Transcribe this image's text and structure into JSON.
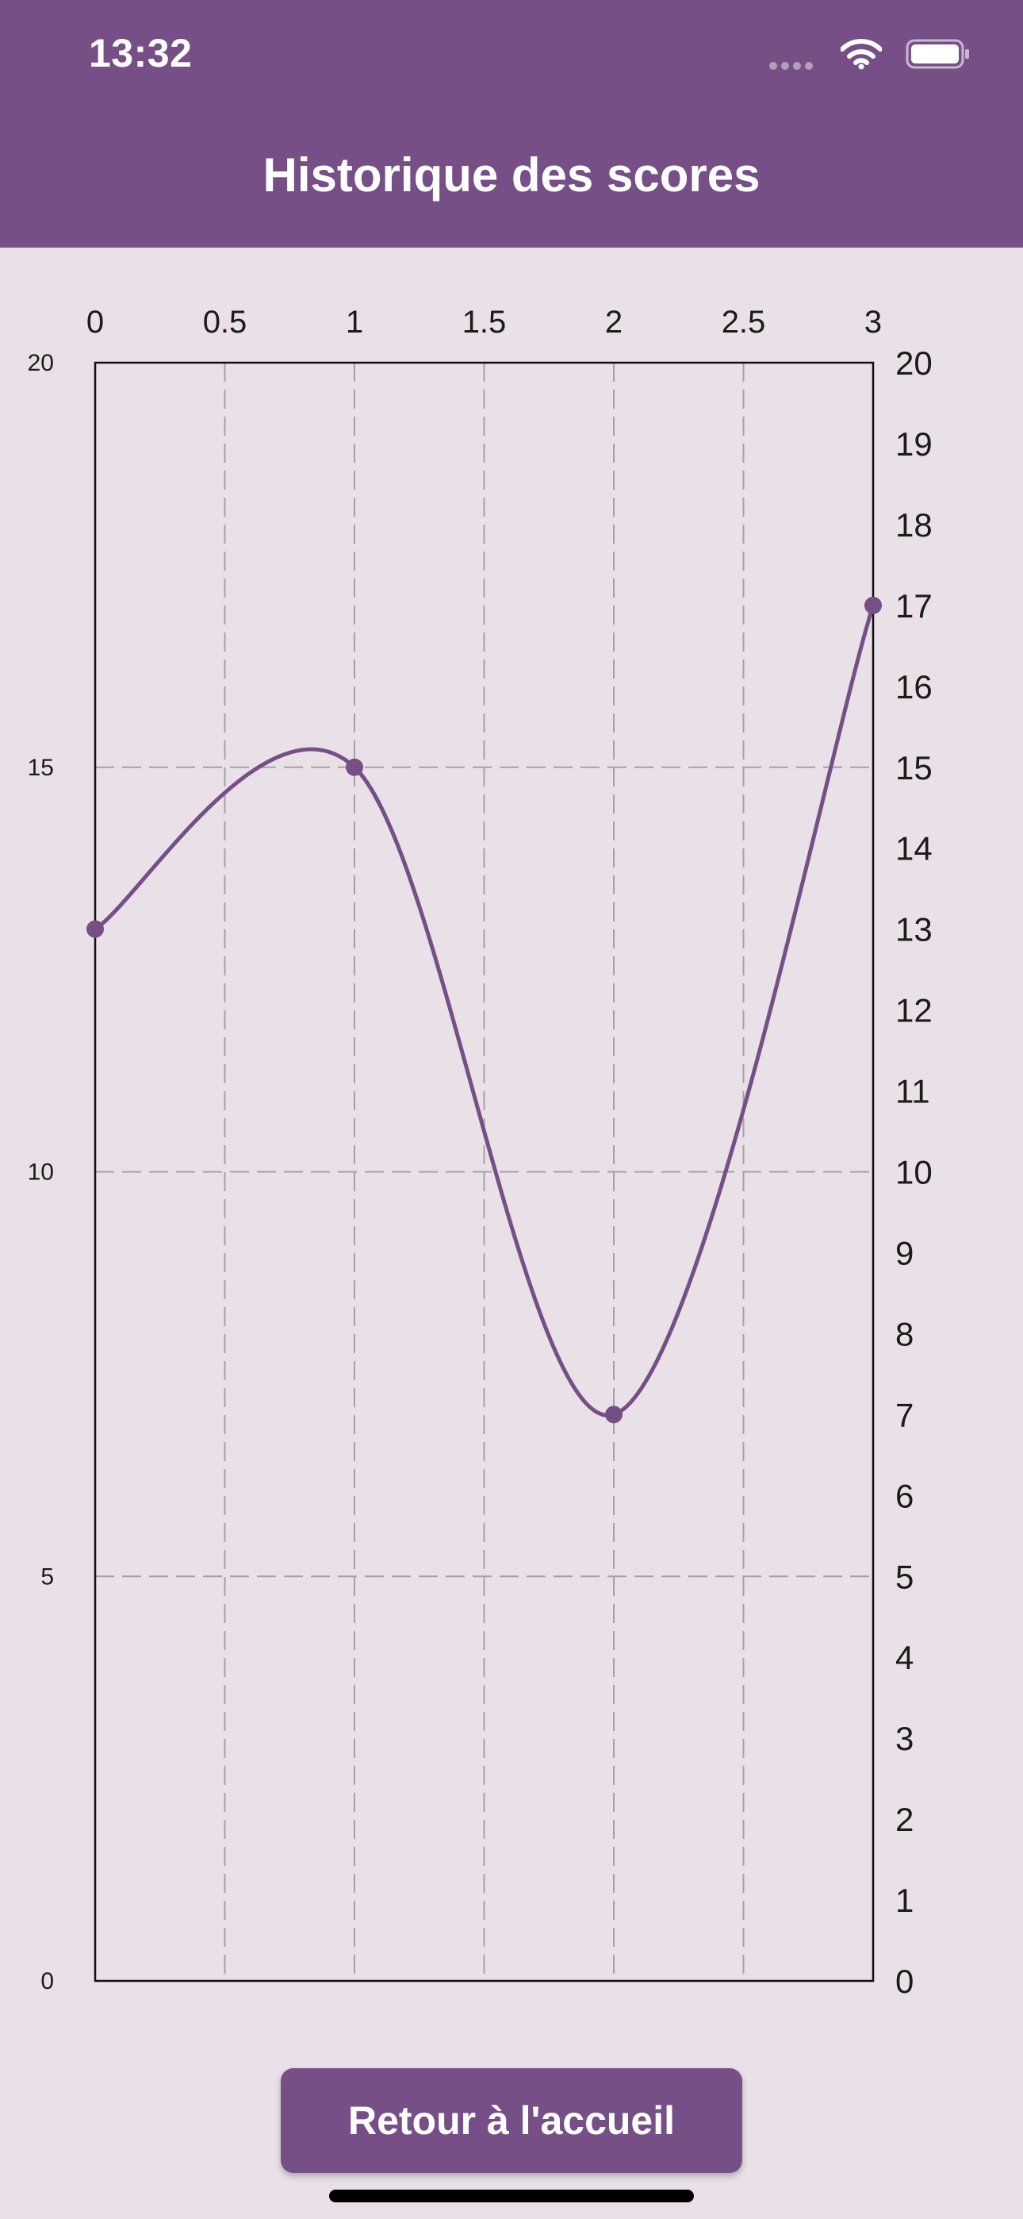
{
  "status_bar": {
    "time": "13:32",
    "icons": [
      "cellular-dots-icon",
      "wifi-icon",
      "battery-icon"
    ]
  },
  "header": {
    "title": "Historique des scores",
    "background": "#754F85"
  },
  "chart_data": {
    "type": "line",
    "title": "",
    "xlabel": "",
    "ylabel": "",
    "x": [
      0,
      1,
      2,
      3
    ],
    "values": [
      13,
      15,
      7,
      17
    ],
    "xlim": [
      0,
      3
    ],
    "ylim": [
      0,
      20
    ],
    "x_ticks": [
      "0",
      "0.5",
      "1",
      "1.5",
      "2",
      "2.5",
      "3"
    ],
    "y_left_ticks": [
      "0",
      "5",
      "10",
      "15",
      "20"
    ],
    "y_right_ticks": [
      "0",
      "1",
      "2",
      "3",
      "4",
      "5",
      "6",
      "7",
      "8",
      "9",
      "10",
      "11",
      "12",
      "13",
      "14",
      "15",
      "16",
      "17",
      "18",
      "19",
      "20"
    ],
    "x_axis_position": "top",
    "grid": true,
    "curve": "smooth",
    "line_color": "#754F85"
  },
  "footer": {
    "button_label": "Retour à l'accueil"
  }
}
